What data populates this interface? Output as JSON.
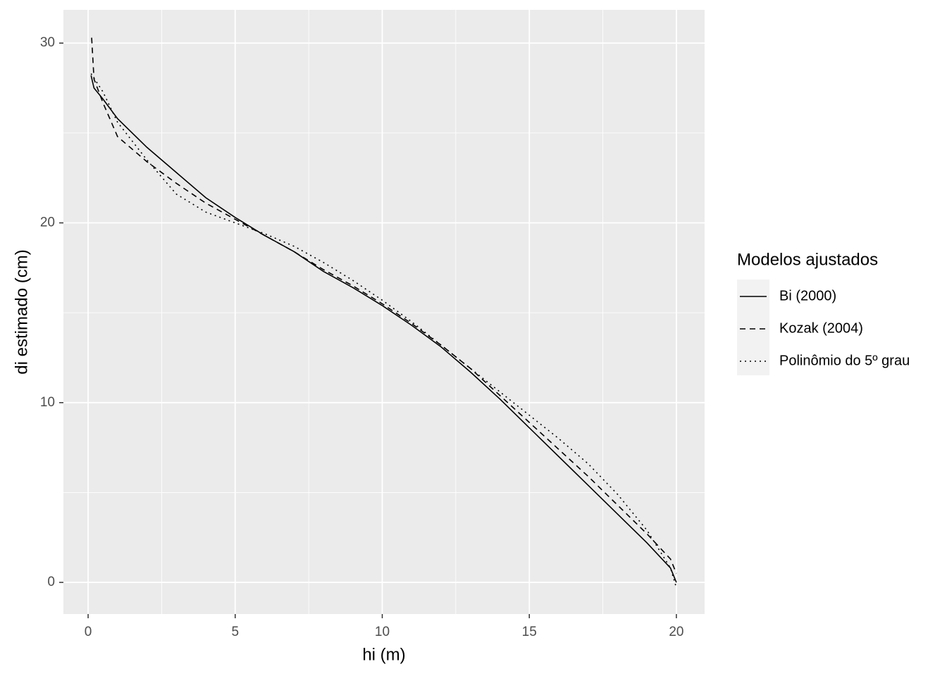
{
  "chart_data": {
    "type": "line",
    "x_label": "hi (m)",
    "y_label": "di estimado (cm)",
    "xlim": [
      -0.84,
      20.96
    ],
    "ylim": [
      -1.76,
      31.85
    ],
    "xticks": [
      0,
      5,
      10,
      15,
      20
    ],
    "yticks": [
      0,
      10,
      20,
      30
    ],
    "xminor": [
      2.5,
      7.5,
      12.5,
      17.5
    ],
    "yminor": [
      5,
      15,
      25
    ],
    "grid": true,
    "legend_title": "Modelos ajustados",
    "legend_position": "right",
    "series": [
      {
        "name": "Bi (2000)",
        "color": "#000000",
        "linetype": "solid",
        "x": [
          0.1,
          0.2,
          0.5,
          1,
          2,
          3,
          4,
          5,
          6,
          7,
          8,
          9,
          10,
          11,
          12,
          13,
          14,
          15,
          16,
          17,
          18,
          19,
          19.8,
          20
        ],
        "values": [
          28.2,
          27.5,
          26.9,
          25.8,
          24.2,
          22.8,
          21.4,
          20.3,
          19.3,
          18.4,
          17.3,
          16.4,
          15.4,
          14.3,
          13.1,
          11.7,
          10.2,
          8.6,
          7.0,
          5.4,
          3.8,
          2.2,
          0.8,
          0
        ]
      },
      {
        "name": "Kozak (2004)",
        "color": "#000000",
        "linetype": "dashed",
        "x": [
          0.12,
          0.2,
          0.5,
          1,
          2,
          3,
          4,
          5,
          6,
          7,
          8,
          9,
          10,
          11,
          12,
          13,
          14,
          15,
          16,
          17,
          18,
          19,
          19.8,
          20
        ],
        "values": [
          30.3,
          28.0,
          26.7,
          24.8,
          23.4,
          22.2,
          21.1,
          20.2,
          19.3,
          18.4,
          17.4,
          16.5,
          15.5,
          14.4,
          13.2,
          11.9,
          10.4,
          8.9,
          7.4,
          5.9,
          4.3,
          2.7,
          1.3,
          0.5
        ]
      },
      {
        "name": "Polinômio do 5º grau",
        "color": "#000000",
        "linetype": "dotted",
        "x": [
          0.1,
          0.5,
          1,
          2,
          3,
          4,
          5,
          6,
          7,
          8,
          9,
          10,
          11,
          12,
          13,
          14,
          15,
          16,
          17,
          18,
          19,
          19.8,
          20
        ],
        "values": [
          28.3,
          27.3,
          25.6,
          23.5,
          21.6,
          20.6,
          20.0,
          19.4,
          18.7,
          17.8,
          16.8,
          15.7,
          14.5,
          13.2,
          11.9,
          10.6,
          9.3,
          8.0,
          6.6,
          4.9,
          2.9,
          0.8,
          -0.3
        ]
      }
    ]
  }
}
